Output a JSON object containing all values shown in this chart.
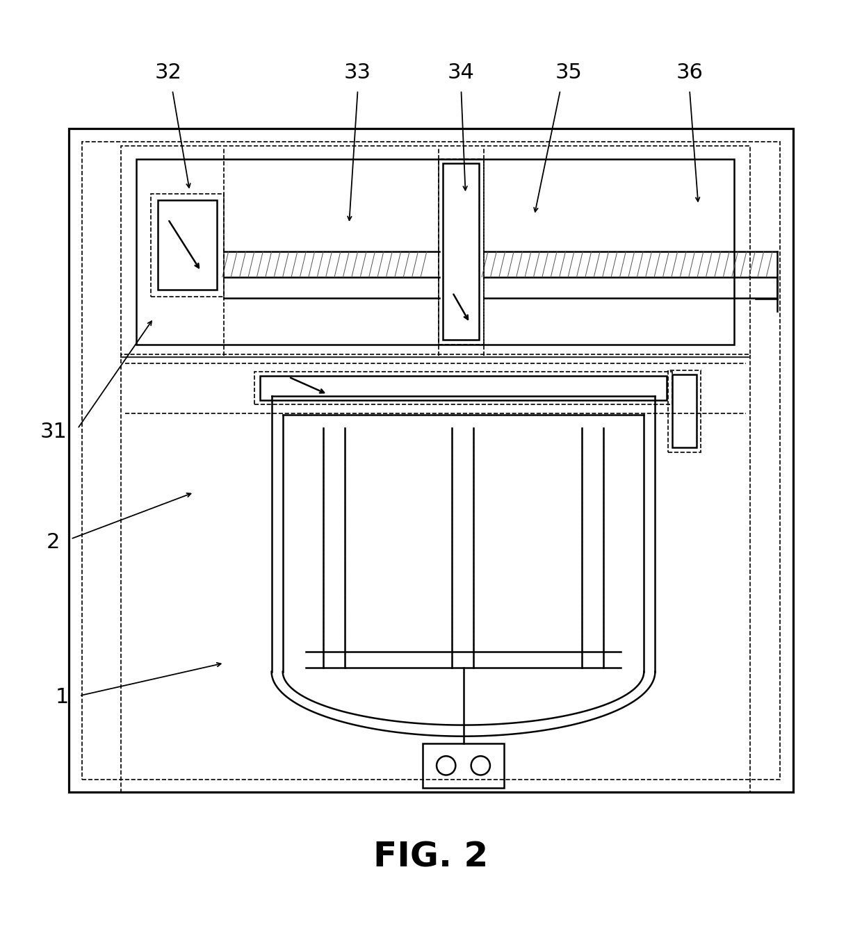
{
  "title": "FIG. 2",
  "title_fontsize": 36,
  "bg_color": "#ffffff",
  "line_color": "#000000",
  "line_width": 1.8,
  "dashed_lw": 1.2,
  "label_fontsize": 22
}
